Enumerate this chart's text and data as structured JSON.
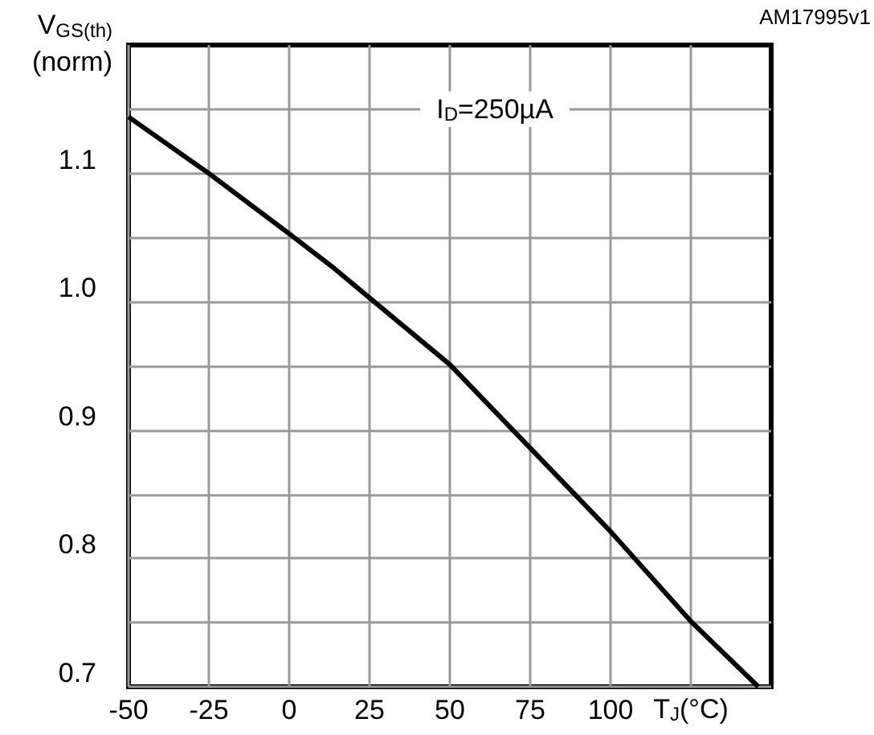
{
  "chart_data": {
    "type": "line",
    "xlabel": "T$_{J}$(°C)",
    "ylabel": "V$_{GS(th)}$\n(norm)",
    "annotations": [
      "I$_{D}$=250µA",
      "AM17995v1"
    ],
    "x": [
      -50,
      -25,
      0,
      14,
      25,
      50,
      75,
      100,
      125,
      146
    ],
    "series": [
      {
        "color": "#000000",
        "values": [
          1.144,
          1.1,
          1.053,
          1.026,
          1.003,
          0.951,
          0.886,
          0.821,
          0.751,
          0.7
        ]
      }
    ],
    "xlim": [
      -50,
      150
    ],
    "xticks": [
      -50,
      -25,
      0,
      25,
      50,
      75,
      100,
      {
        "value": 125,
        "label": null
      }
    ],
    "ylim": [
      0.7,
      1.2
    ],
    "yticks": [
      {
        "value": 0.7,
        "label": "0.7"
      },
      {
        "value": 0.75,
        "label": null
      },
      0.8,
      {
        "value": 0.85,
        "label": null
      },
      0.9,
      {
        "value": 0.95,
        "label": null
      },
      {
        "value": 1,
        "label": "1.0"
      },
      {
        "value": 1.05,
        "label": null
      },
      1.1,
      {
        "value": 1.15,
        "label": null
      }
    ],
    "grid": true,
    "marker": "none",
    "line_style": "solid"
  }
}
